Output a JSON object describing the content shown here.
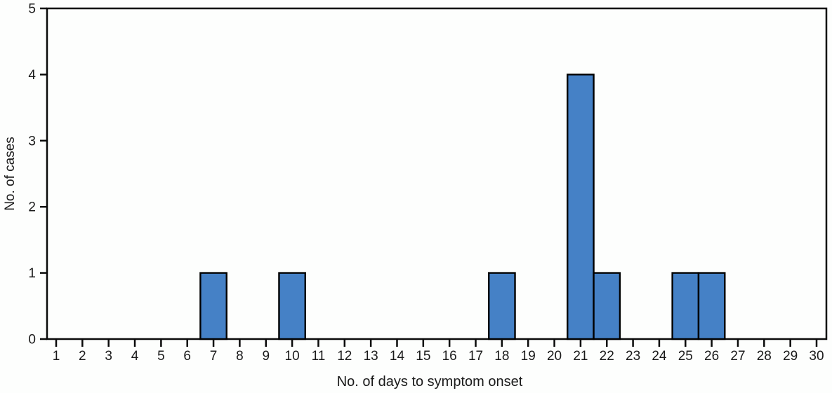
{
  "chart_data": {
    "type": "bar",
    "title": "",
    "xlabel": "No. of days to symptom onset",
    "ylabel": "No. of cases",
    "categories": [
      1,
      2,
      3,
      4,
      5,
      6,
      7,
      8,
      9,
      10,
      11,
      12,
      13,
      14,
      15,
      16,
      17,
      18,
      19,
      20,
      21,
      22,
      23,
      24,
      25,
      26,
      27,
      28,
      29,
      30
    ],
    "values": [
      0,
      0,
      0,
      0,
      0,
      0,
      1,
      0,
      0,
      1,
      0,
      0,
      0,
      0,
      0,
      0,
      0,
      1,
      0,
      0,
      4,
      1,
      0,
      0,
      1,
      1,
      0,
      0,
      0,
      0
    ],
    "points": [
      {
        "day": 7,
        "cases": 1
      },
      {
        "day": 10,
        "cases": 1
      },
      {
        "day": 18,
        "cases": 1
      },
      {
        "day": 21,
        "cases": 4
      },
      {
        "day": 22,
        "cases": 1
      },
      {
        "day": 25,
        "cases": 1
      },
      {
        "day": 26,
        "cases": 1
      }
    ],
    "y_ticks": [
      0,
      1,
      2,
      3,
      4,
      5
    ],
    "ylim": [
      0,
      5
    ],
    "bar_width_units": 1,
    "grid": false,
    "legend": false,
    "frame": "full-box",
    "colors": {
      "bar_fill": "#4581C6",
      "bar_border": "#000000",
      "axis": "#0a0a0a",
      "text": "#1a1a1a",
      "background": "#fdfefd"
    }
  }
}
